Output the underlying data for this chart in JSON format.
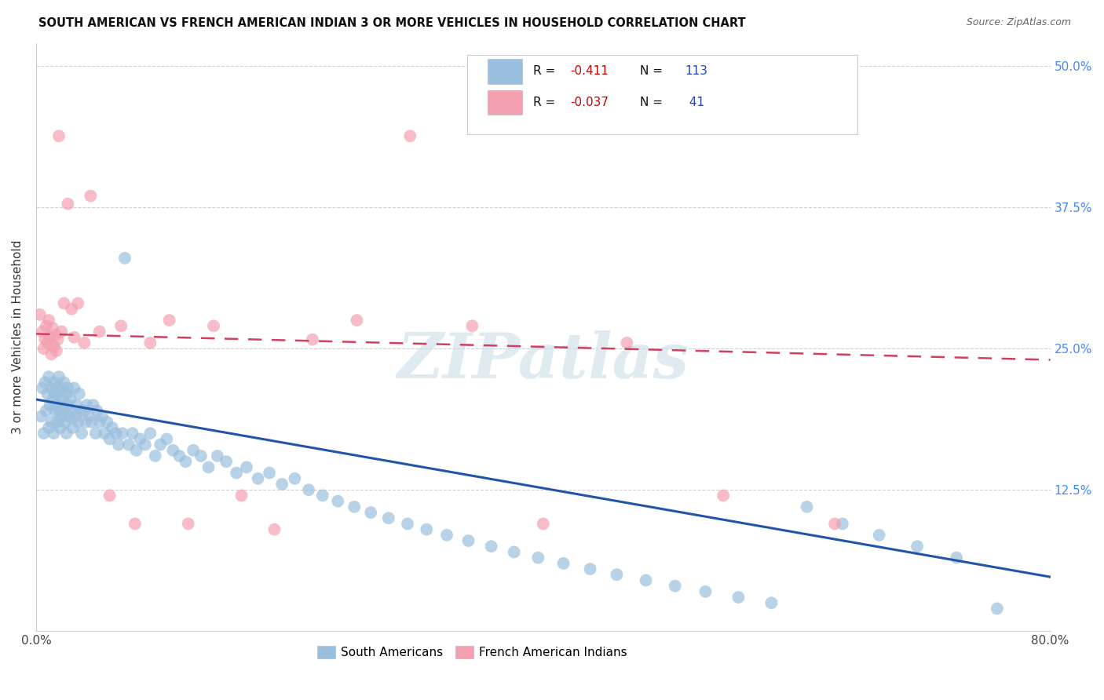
{
  "title": "SOUTH AMERICAN VS FRENCH AMERICAN INDIAN 3 OR MORE VEHICLES IN HOUSEHOLD CORRELATION CHART",
  "source": "Source: ZipAtlas.com",
  "ylabel": "3 or more Vehicles in Household",
  "ytick_labels": [
    "12.5%",
    "25.0%",
    "37.5%",
    "50.0%"
  ],
  "ytick_values": [
    0.125,
    0.25,
    0.375,
    0.5
  ],
  "xlim": [
    0.0,
    0.8
  ],
  "ylim": [
    0.0,
    0.52
  ],
  "watermark": "ZIPatlas",
  "blue_color": "#9bbfde",
  "pink_color": "#f4a0b0",
  "blue_line_color": "#2255aa",
  "pink_line_color": "#d04060",
  "grid_color": "#cccccc",
  "background_color": "#ffffff",
  "sa_trend_x": [
    0.0,
    0.8
  ],
  "sa_trend_y": [
    0.205,
    0.048
  ],
  "fa_trend_x": [
    0.0,
    0.8
  ],
  "fa_trend_y": [
    0.263,
    0.24
  ],
  "south_american_x": [
    0.004,
    0.005,
    0.006,
    0.007,
    0.008,
    0.009,
    0.01,
    0.01,
    0.011,
    0.012,
    0.012,
    0.013,
    0.014,
    0.014,
    0.015,
    0.015,
    0.016,
    0.016,
    0.017,
    0.017,
    0.018,
    0.018,
    0.019,
    0.019,
    0.02,
    0.02,
    0.021,
    0.022,
    0.022,
    0.023,
    0.024,
    0.024,
    0.025,
    0.025,
    0.026,
    0.027,
    0.028,
    0.029,
    0.03,
    0.031,
    0.032,
    0.033,
    0.034,
    0.035,
    0.036,
    0.038,
    0.039,
    0.04,
    0.042,
    0.044,
    0.045,
    0.047,
    0.048,
    0.05,
    0.052,
    0.054,
    0.056,
    0.058,
    0.06,
    0.063,
    0.065,
    0.068,
    0.07,
    0.073,
    0.076,
    0.079,
    0.082,
    0.086,
    0.09,
    0.094,
    0.098,
    0.103,
    0.108,
    0.113,
    0.118,
    0.124,
    0.13,
    0.136,
    0.143,
    0.15,
    0.158,
    0.166,
    0.175,
    0.184,
    0.194,
    0.204,
    0.215,
    0.226,
    0.238,
    0.251,
    0.264,
    0.278,
    0.293,
    0.308,
    0.324,
    0.341,
    0.359,
    0.377,
    0.396,
    0.416,
    0.437,
    0.458,
    0.481,
    0.504,
    0.528,
    0.554,
    0.58,
    0.608,
    0.636,
    0.665,
    0.695,
    0.726,
    0.758
  ],
  "south_american_y": [
    0.19,
    0.215,
    0.175,
    0.22,
    0.195,
    0.21,
    0.18,
    0.225,
    0.2,
    0.215,
    0.185,
    0.205,
    0.22,
    0.175,
    0.21,
    0.195,
    0.2,
    0.215,
    0.185,
    0.21,
    0.195,
    0.225,
    0.2,
    0.18,
    0.215,
    0.19,
    0.205,
    0.195,
    0.22,
    0.185,
    0.21,
    0.175,
    0.2,
    0.215,
    0.19,
    0.205,
    0.195,
    0.18,
    0.215,
    0.19,
    0.2,
    0.185,
    0.21,
    0.195,
    0.175,
    0.195,
    0.185,
    0.2,
    0.19,
    0.185,
    0.2,
    0.175,
    0.195,
    0.185,
    0.19,
    0.175,
    0.185,
    0.17,
    0.18,
    0.175,
    0.165,
    0.175,
    0.33,
    0.165,
    0.175,
    0.16,
    0.17,
    0.165,
    0.175,
    0.155,
    0.165,
    0.17,
    0.16,
    0.155,
    0.15,
    0.16,
    0.155,
    0.145,
    0.155,
    0.15,
    0.14,
    0.145,
    0.135,
    0.14,
    0.13,
    0.135,
    0.125,
    0.12,
    0.115,
    0.11,
    0.105,
    0.1,
    0.095,
    0.09,
    0.085,
    0.08,
    0.075,
    0.07,
    0.065,
    0.06,
    0.055,
    0.05,
    0.045,
    0.04,
    0.035,
    0.03,
    0.025,
    0.11,
    0.095,
    0.085,
    0.075,
    0.065,
    0.02
  ],
  "french_american_x": [
    0.003,
    0.005,
    0.006,
    0.007,
    0.008,
    0.009,
    0.01,
    0.011,
    0.012,
    0.013,
    0.014,
    0.015,
    0.016,
    0.017,
    0.018,
    0.02,
    0.022,
    0.025,
    0.028,
    0.03,
    0.033,
    0.038,
    0.043,
    0.05,
    0.058,
    0.067,
    0.078,
    0.09,
    0.105,
    0.12,
    0.14,
    0.162,
    0.188,
    0.218,
    0.253,
    0.295,
    0.344,
    0.4,
    0.466,
    0.542,
    0.63
  ],
  "french_american_y": [
    0.28,
    0.265,
    0.25,
    0.258,
    0.27,
    0.255,
    0.275,
    0.26,
    0.245,
    0.268,
    0.252,
    0.262,
    0.248,
    0.258,
    0.438,
    0.265,
    0.29,
    0.378,
    0.285,
    0.26,
    0.29,
    0.255,
    0.385,
    0.265,
    0.12,
    0.27,
    0.095,
    0.255,
    0.275,
    0.095,
    0.27,
    0.12,
    0.09,
    0.258,
    0.275,
    0.438,
    0.27,
    0.095,
    0.255,
    0.12,
    0.095
  ]
}
